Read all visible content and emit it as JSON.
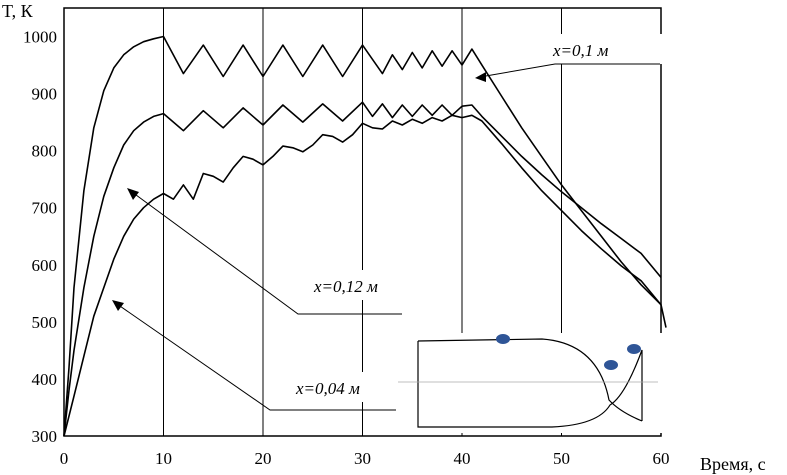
{
  "chart_data": {
    "type": "line",
    "xlabel": "Время, с",
    "ylabel": "T, К",
    "xlim": [
      0,
      60
    ],
    "ylim": [
      300,
      1050
    ],
    "xticks": [
      0,
      10,
      20,
      30,
      40,
      50,
      60
    ],
    "yticks": [
      300,
      400,
      500,
      600,
      700,
      800,
      900,
      1000
    ],
    "grid": "vertical",
    "legend": "none",
    "line_color": "#000000",
    "series": [
      {
        "label": "x=0,1 м",
        "points": [
          [
            0,
            300
          ],
          [
            0.5,
            420
          ],
          [
            1,
            560
          ],
          [
            2,
            730
          ],
          [
            3,
            840
          ],
          [
            4,
            905
          ],
          [
            5,
            945
          ],
          [
            6,
            968
          ],
          [
            7,
            982
          ],
          [
            8,
            991
          ],
          [
            9,
            996
          ],
          [
            10,
            1000
          ],
          [
            12,
            935
          ],
          [
            14,
            985
          ],
          [
            16,
            930
          ],
          [
            18,
            985
          ],
          [
            20,
            930
          ],
          [
            22,
            985
          ],
          [
            24,
            930
          ],
          [
            26,
            985
          ],
          [
            28,
            930
          ],
          [
            30,
            985
          ],
          [
            32,
            935
          ],
          [
            33,
            968
          ],
          [
            34,
            942
          ],
          [
            35,
            972
          ],
          [
            36,
            945
          ],
          [
            37,
            975
          ],
          [
            38,
            948
          ],
          [
            39,
            975
          ],
          [
            40,
            950
          ],
          [
            41,
            978
          ],
          [
            42,
            950
          ],
          [
            44,
            895
          ],
          [
            46,
            840
          ],
          [
            48,
            790
          ],
          [
            50,
            740
          ],
          [
            52,
            695
          ],
          [
            54,
            650
          ],
          [
            56,
            605
          ],
          [
            58,
            565
          ],
          [
            60,
            530
          ],
          [
            60.5,
            490
          ]
        ]
      },
      {
        "label": "x=0,12 м",
        "points": [
          [
            0,
            300
          ],
          [
            0.5,
            380
          ],
          [
            1,
            450
          ],
          [
            2,
            560
          ],
          [
            3,
            650
          ],
          [
            4,
            720
          ],
          [
            5,
            770
          ],
          [
            6,
            810
          ],
          [
            7,
            835
          ],
          [
            8,
            850
          ],
          [
            9,
            860
          ],
          [
            10,
            865
          ],
          [
            12,
            835
          ],
          [
            14,
            870
          ],
          [
            16,
            840
          ],
          [
            18,
            875
          ],
          [
            20,
            845
          ],
          [
            22,
            880
          ],
          [
            24,
            850
          ],
          [
            26,
            882
          ],
          [
            28,
            852
          ],
          [
            30,
            885
          ],
          [
            31,
            860
          ],
          [
            32,
            882
          ],
          [
            33,
            858
          ],
          [
            34,
            880
          ],
          [
            35,
            860
          ],
          [
            36,
            880
          ],
          [
            37,
            862
          ],
          [
            38,
            880
          ],
          [
            39,
            862
          ],
          [
            40,
            878
          ],
          [
            41,
            880
          ],
          [
            42,
            860
          ],
          [
            44,
            825
          ],
          [
            46,
            790
          ],
          [
            48,
            758
          ],
          [
            50,
            728
          ],
          [
            52,
            700
          ],
          [
            54,
            672
          ],
          [
            56,
            646
          ],
          [
            58,
            620
          ],
          [
            60,
            578
          ]
        ]
      },
      {
        "label": "x=0,04 м",
        "points": [
          [
            0,
            300
          ],
          [
            1,
            370
          ],
          [
            2,
            440
          ],
          [
            3,
            510
          ],
          [
            4,
            560
          ],
          [
            5,
            610
          ],
          [
            6,
            650
          ],
          [
            7,
            680
          ],
          [
            8,
            700
          ],
          [
            9,
            715
          ],
          [
            10,
            725
          ],
          [
            11,
            715
          ],
          [
            12,
            740
          ],
          [
            13,
            715
          ],
          [
            14,
            760
          ],
          [
            15,
            755
          ],
          [
            16,
            745
          ],
          [
            17,
            770
          ],
          [
            18,
            790
          ],
          [
            19,
            785
          ],
          [
            20,
            775
          ],
          [
            21,
            790
          ],
          [
            22,
            808
          ],
          [
            23,
            805
          ],
          [
            24,
            798
          ],
          [
            25,
            810
          ],
          [
            26,
            828
          ],
          [
            27,
            825
          ],
          [
            28,
            815
          ],
          [
            29,
            828
          ],
          [
            30,
            848
          ],
          [
            31,
            840
          ],
          [
            32,
            838
          ],
          [
            33,
            852
          ],
          [
            34,
            845
          ],
          [
            35,
            855
          ],
          [
            36,
            848
          ],
          [
            37,
            858
          ],
          [
            38,
            852
          ],
          [
            39,
            862
          ],
          [
            40,
            858
          ],
          [
            41,
            862
          ],
          [
            42,
            852
          ],
          [
            44,
            812
          ],
          [
            46,
            770
          ],
          [
            48,
            730
          ],
          [
            50,
            695
          ],
          [
            52,
            660
          ],
          [
            54,
            628
          ],
          [
            56,
            598
          ],
          [
            58,
            572
          ],
          [
            60,
            530
          ]
        ]
      }
    ]
  },
  "annotations": [
    {
      "text": "x=0,1 м",
      "series_index": 0
    },
    {
      "text": "x=0,12 м",
      "series_index": 1
    },
    {
      "text": "x=0,04 м",
      "series_index": 2
    }
  ],
  "inset": {
    "description_icon": "nozzle-sketch-icon",
    "marker_color": "#2f5597"
  }
}
